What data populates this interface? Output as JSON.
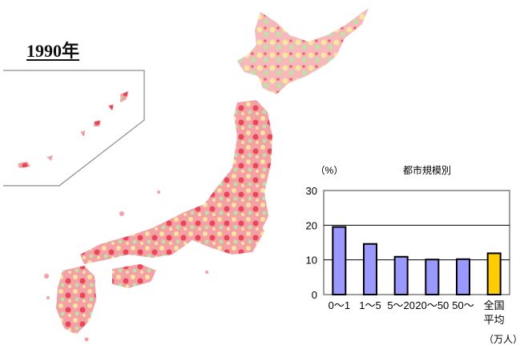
{
  "map": {
    "title": "1990年",
    "colors": {
      "high": "#e8283a",
      "mid": "#f4a0a6",
      "low": "#f6e79a",
      "green": "#b6e6a4",
      "frame": "#8c8c8c"
    }
  },
  "chart_data": {
    "type": "bar",
    "title": "都市規模別",
    "ylabel": "（%）",
    "unit_label": "（万人）",
    "ylim": [
      0,
      30
    ],
    "yticks": [
      "0",
      "10",
      "20",
      "30"
    ],
    "grid": true,
    "categories": [
      {
        "line1": "0～1",
        "line2": ""
      },
      {
        "line1": "1～5",
        "line2": ""
      },
      {
        "line1": "5～20",
        "line2": ""
      },
      {
        "line1": "20～50",
        "line2": ""
      },
      {
        "line1": "50～",
        "line2": ""
      },
      {
        "line1": "全国",
        "line2": "平均"
      }
    ],
    "values": [
      19.5,
      14.6,
      10.9,
      10.1,
      10.2,
      11.9
    ],
    "bar_colors": [
      "#9999ff",
      "#9999ff",
      "#9999ff",
      "#9999ff",
      "#9999ff",
      "#ffcc00"
    ]
  }
}
